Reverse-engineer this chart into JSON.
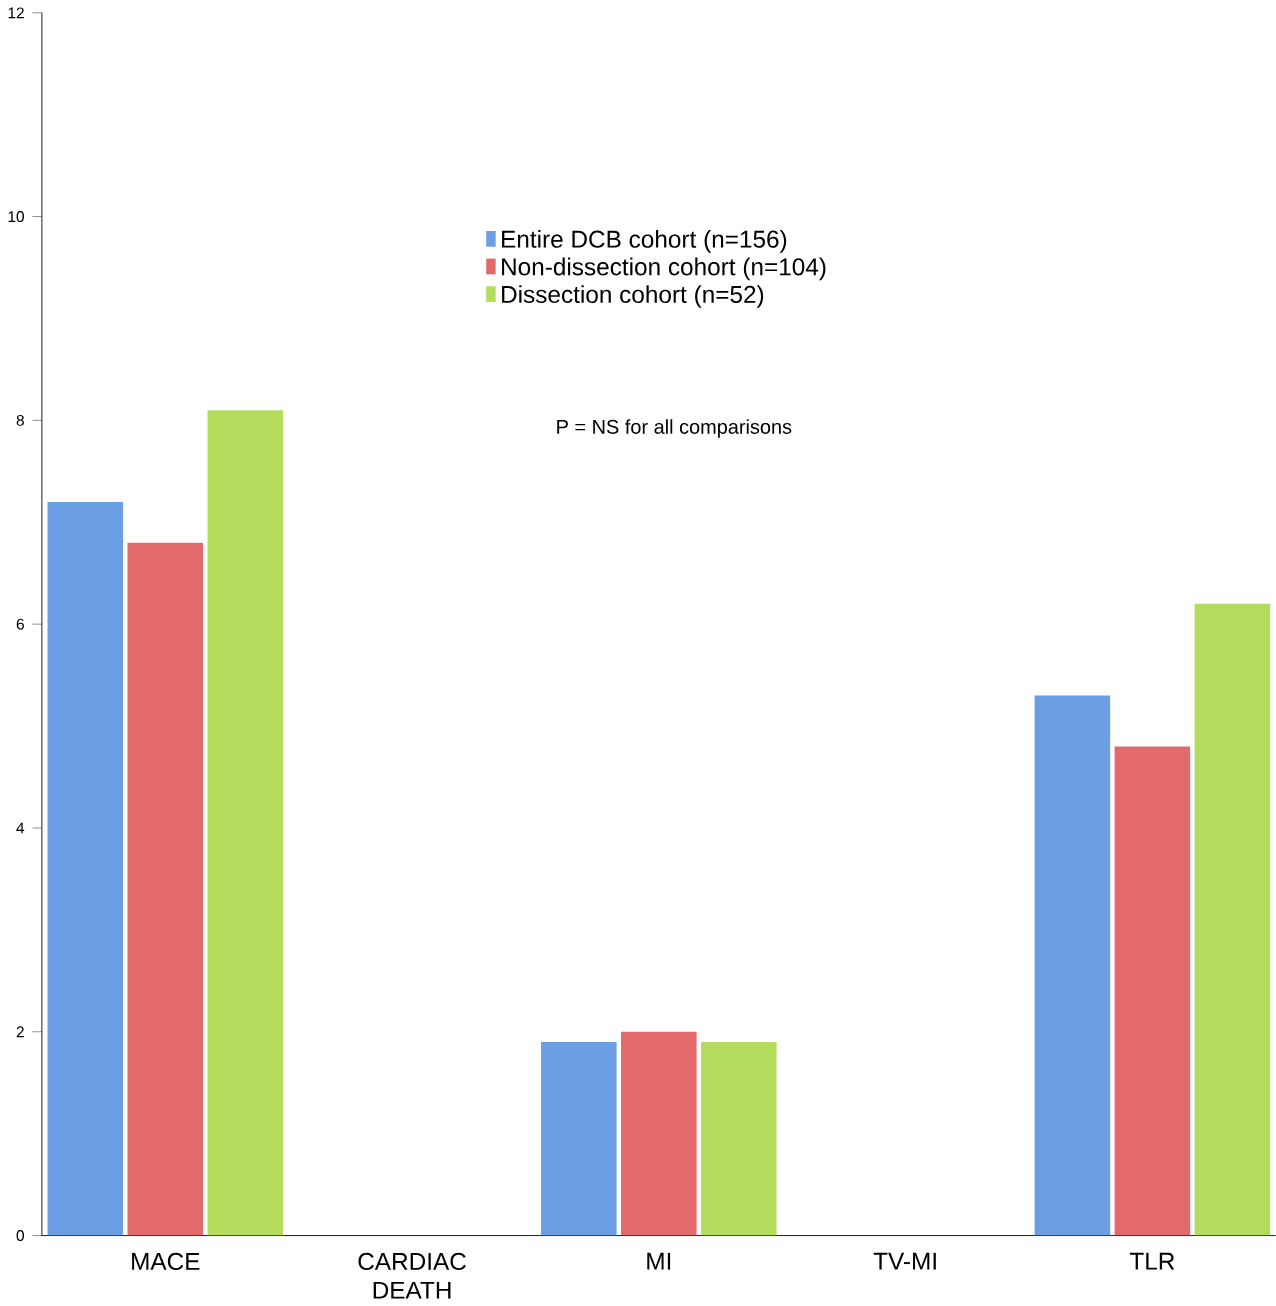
{
  "chart_data": {
    "type": "bar",
    "categories": [
      "MACE",
      "CARDIAC DEATH",
      "MI",
      "TV-MI",
      "TLR"
    ],
    "series": [
      {
        "name": "Entire DCB cohort (n=156)",
        "color": "#6b9ee3",
        "values": [
          7.2,
          0,
          1.9,
          0,
          5.3
        ]
      },
      {
        "name": "Non-dissection cohort (n=104)",
        "color": "#e26a6a",
        "values": [
          6.8,
          0,
          2.0,
          0,
          4.8
        ]
      },
      {
        "name": "Dissection cohort (n=52)",
        "color": "#b4dc5c",
        "values": [
          8.1,
          0,
          1.9,
          0,
          6.2
        ]
      }
    ],
    "ylim": [
      0,
      12
    ],
    "yticks": [
      0,
      2,
      4,
      6,
      8,
      10,
      12
    ],
    "grid": false,
    "legend": "top",
    "annotations": [
      "P = NS for all comparisons"
    ]
  }
}
